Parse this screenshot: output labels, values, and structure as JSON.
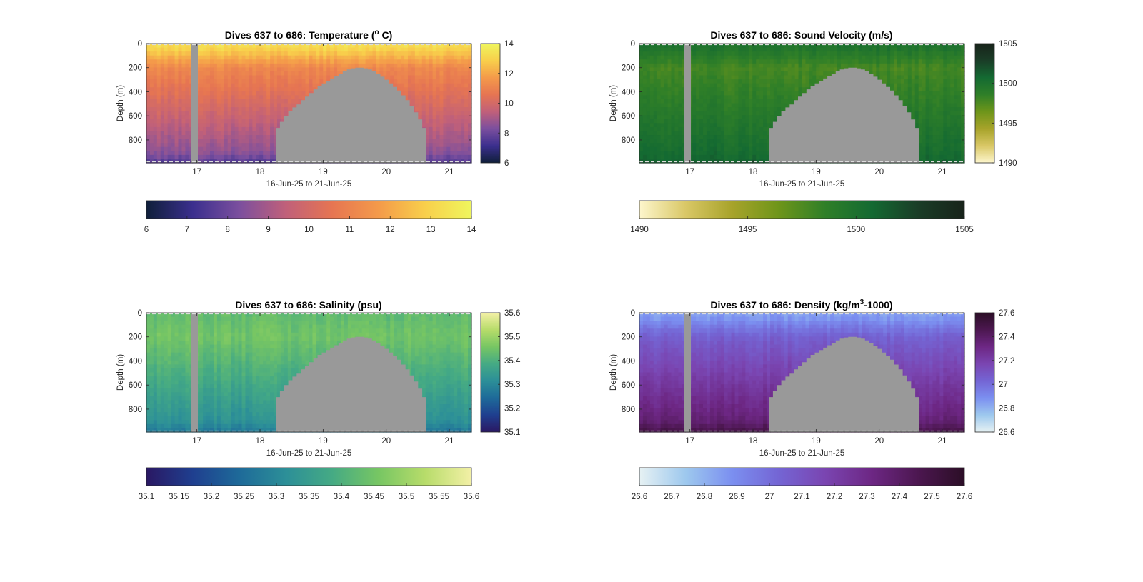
{
  "chart_data": [
    {
      "type": "heatmap",
      "id": "temperature",
      "title": "Dives 637 to 686: Temperature (",
      "title_sup": "o",
      "title_end": " C)",
      "xlabel": "16-Jun-25 to 21-Jun-25",
      "ylabel": "Depth (m)",
      "x_ticks": [
        "17",
        "18",
        "19",
        "20",
        "21"
      ],
      "y_ticks": [
        "0",
        "200",
        "400",
        "600",
        "800"
      ],
      "xlim": [
        16.2,
        21.35
      ],
      "ylim": [
        0,
        990
      ],
      "color_range": [
        6,
        14
      ],
      "colorbar_side_ticks": [
        "6",
        "8",
        "10",
        "12",
        "14"
      ],
      "colorbar_bottom_ticks": [
        "6",
        "7",
        "8",
        "9",
        "10",
        "11",
        "12",
        "13",
        "14"
      ],
      "colormap": [
        "#0f1f3a",
        "#3b2f8e",
        "#7b4f9e",
        "#c0607a",
        "#e67552",
        "#f49a4a",
        "#f8cf4b",
        "#eff65d"
      ],
      "profile": {
        "surface": 13.2,
        "depth200": 11.2,
        "depth900": 8.6,
        "bottom": 7.6
      },
      "gap_color": "#999999"
    },
    {
      "type": "heatmap",
      "id": "sound_velocity",
      "title": "Dives 637 to 686: Sound Velocity (m/s)",
      "xlabel": "16-Jun-25 to 21-Jun-25",
      "ylabel": "Depth (m)",
      "x_ticks": [
        "17",
        "18",
        "19",
        "20",
        "21"
      ],
      "y_ticks": [
        "0",
        "200",
        "400",
        "600",
        "800"
      ],
      "xlim": [
        16.2,
        21.35
      ],
      "ylim": [
        0,
        990
      ],
      "color_range": [
        1490,
        1505
      ],
      "colorbar_side_ticks": [
        "1490",
        "1495",
        "1500",
        "1505"
      ],
      "colorbar_bottom_ticks": [
        "1490",
        "1495",
        "1500",
        "1505"
      ],
      "colormap": [
        "#fdf6cc",
        "#d9c766",
        "#a7a32a",
        "#6e951a",
        "#2f7f28",
        "#146a32",
        "#1a3d27",
        "#18231a"
      ],
      "profile": {
        "surface": 1499.8,
        "depth200": 1497.8,
        "depth900": 1500.4,
        "bottom": 1500.9
      },
      "gap_color": "#999999"
    },
    {
      "type": "heatmap",
      "id": "salinity",
      "title": "Dives 637 to 686: Salinity (psu)",
      "xlabel": "16-Jun-25 to 21-Jun-25",
      "ylabel": "Depth (m)",
      "x_ticks": [
        "17",
        "18",
        "19",
        "20",
        "21"
      ],
      "y_ticks": [
        "0",
        "200",
        "400",
        "600",
        "800"
      ],
      "xlim": [
        16.2,
        21.35
      ],
      "ylim": [
        0,
        990
      ],
      "color_range": [
        35.1,
        35.6
      ],
      "colorbar_side_ticks": [
        "35.1",
        "35.2",
        "35.3",
        "35.4",
        "35.5",
        "35.6"
      ],
      "colorbar_bottom_ticks": [
        "35.1",
        "35.15",
        "35.2",
        "35.25",
        "35.3",
        "35.35",
        "35.4",
        "35.45",
        "35.5",
        "35.55",
        "35.6"
      ],
      "colormap": [
        "#2a1863",
        "#1f3f8f",
        "#1e6a99",
        "#2c8f98",
        "#45aa84",
        "#77c663",
        "#b7dc6a",
        "#f3f0a6"
      ],
      "profile": {
        "surface": 35.43,
        "depth200": 35.45,
        "depth900": 35.32,
        "bottom": 35.27
      },
      "gap_color": "#999999"
    },
    {
      "type": "heatmap",
      "id": "density",
      "title": "Dives 637 to 686: Density (kg/m",
      "title_sup": "3",
      "title_end": "-1000)",
      "xlabel": "16-Jun-25 to 21-Jun-25",
      "ylabel": "Depth (m)",
      "x_ticks": [
        "17",
        "18",
        "19",
        "20",
        "21"
      ],
      "y_ticks": [
        "0",
        "200",
        "400",
        "600",
        "800"
      ],
      "xlim": [
        16.2,
        21.35
      ],
      "ylim": [
        0,
        990
      ],
      "color_range": [
        26.6,
        27.6
      ],
      "colorbar_side_ticks": [
        "26.6",
        "26.8",
        "27",
        "27.2",
        "27.4",
        "27.6"
      ],
      "colorbar_bottom_ticks": [
        "26.6",
        "26.7",
        "26.8",
        "26.9",
        "27",
        "27.1",
        "27.2",
        "27.3",
        "27.4",
        "27.5",
        "27.6"
      ],
      "colormap": [
        "#e6f1f3",
        "#9dc8ee",
        "#7b8ff0",
        "#7465d4",
        "#7a45b1",
        "#6d2784",
        "#4c1750",
        "#2b0e26"
      ],
      "profile": {
        "surface": 26.85,
        "depth200": 27.05,
        "depth900": 27.36,
        "bottom": 27.48
      },
      "gap_color": "#999999"
    }
  ]
}
